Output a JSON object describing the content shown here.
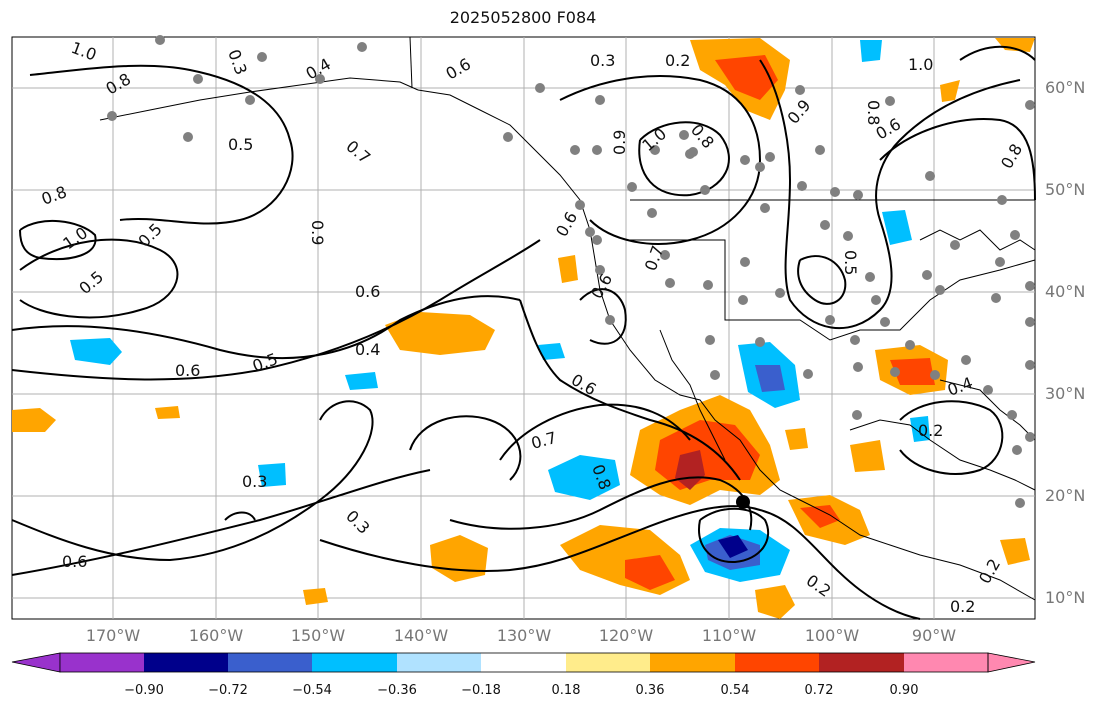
{
  "title": "2025052800 F084",
  "map": {
    "lat_labels": [
      "60°N",
      "50°N",
      "40°N",
      "30°N",
      "20°N",
      "10°N"
    ],
    "lon_labels": [
      "170°W",
      "160°W",
      "150°W",
      "140°W",
      "130°W",
      "120°W",
      "110°W",
      "100°W",
      "90°W"
    ],
    "contour_labels": [
      "1.0",
      "0.8",
      "0.3",
      "0.5",
      "0.4",
      "0.6",
      "0.3",
      "0.2",
      "0.5",
      "0.7",
      "0.9",
      "0.8",
      "1.0",
      "0.5",
      "0.6",
      "0.6",
      "0.6",
      "0.5",
      "0.4",
      "0.6",
      "0.7",
      "0.8",
      "0.9",
      "1.0",
      "0.8",
      "0.6",
      "0.9",
      "0.5",
      "0.6",
      "0.4",
      "0.2",
      "0.3",
      "0.3",
      "0.2",
      "0.2",
      "0.2",
      "0.8",
      "1.0",
      "0.7",
      "0.8",
      "0.6"
    ],
    "colors": {
      "land_border": "#000000",
      "contour": "#000000",
      "station": "#808080",
      "grid": "#b0b0b0"
    }
  },
  "colorbar": {
    "ticks": [
      "−0.90",
      "−0.72",
      "−0.54",
      "−0.36",
      "−0.18",
      "0.18",
      "0.36",
      "0.54",
      "0.72",
      "0.90"
    ],
    "colors": [
      "#9932cc",
      "#00008b",
      "#3a5fcd",
      "#00bfff",
      "#b0e2ff",
      "#ffffff",
      "#ffec8b",
      "#ffa500",
      "#ff4500",
      "#b22222",
      "#ff88b0"
    ]
  }
}
